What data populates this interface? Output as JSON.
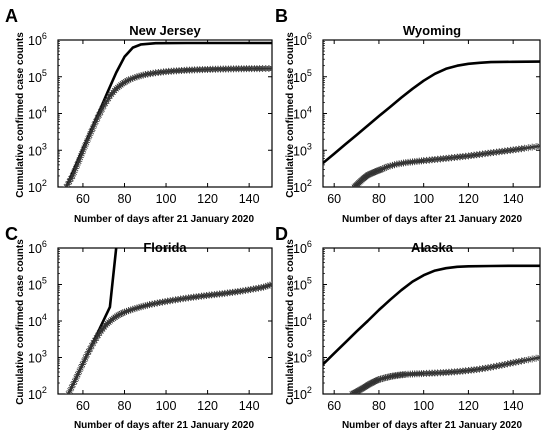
{
  "figure": {
    "line_color": "#000000",
    "marker_color": "#333333",
    "axis_color": "#000000"
  },
  "chart_data": [
    {
      "type": "line",
      "panel_letter": "A",
      "title": "New Jersey",
      "xlabel": "Number of days after 21 January 2020",
      "ylabel": "Cumulative confirmed case counts",
      "yscale": "log",
      "xlim": [
        48,
        151
      ],
      "ylim": [
        100,
        1000000
      ],
      "xticks": [
        60,
        80,
        100,
        120,
        140
      ],
      "yticks": [
        100,
        1000,
        10000,
        100000,
        1000000
      ],
      "ytick_labels": [
        "10^2",
        "10^3",
        "10^4",
        "10^5",
        "10^6"
      ],
      "grid": false,
      "series": [
        {
          "kind": "model",
          "style": "line",
          "x": [
            52,
            56,
            60,
            64,
            68,
            72,
            76,
            80,
            84,
            88,
            95,
            110,
            130,
            151
          ],
          "y": [
            100,
            330,
            1100,
            3600,
            12000,
            40000,
            130000,
            350000,
            620000,
            760000,
            820000,
            830000,
            830000,
            830000
          ]
        },
        {
          "kind": "observed",
          "style": "markers",
          "x": [
            52,
            55,
            58,
            61,
            64,
            67,
            70,
            73,
            76,
            79,
            82,
            86,
            90,
            95,
            100,
            105,
            110,
            115,
            120,
            125,
            130,
            135,
            140,
            145,
            151
          ],
          "y": [
            100,
            200,
            500,
            1300,
            3200,
            7500,
            16000,
            30000,
            47000,
            65000,
            82000,
            100000,
            115000,
            128000,
            138000,
            145000,
            151000,
            155000,
            158000,
            161000,
            163000,
            165000,
            166000,
            167000,
            168000
          ]
        }
      ]
    },
    {
      "type": "line",
      "panel_letter": "B",
      "title": "Wyoming",
      "xlabel": "Number of days after 21 January 2020",
      "ylabel": "Cumulative confirmed case counts",
      "yscale": "log",
      "xlim": [
        55,
        152
      ],
      "ylim": [
        100,
        1000000
      ],
      "xticks": [
        60,
        80,
        100,
        120,
        140
      ],
      "yticks": [
        100,
        1000,
        10000,
        100000,
        1000000
      ],
      "ytick_labels": [
        "10^2",
        "10^3",
        "10^4",
        "10^5",
        "10^6"
      ],
      "grid": false,
      "series": [
        {
          "kind": "model",
          "style": "line",
          "x": [
            55,
            60,
            65,
            70,
            75,
            80,
            85,
            90,
            95,
            100,
            105,
            110,
            115,
            120,
            125,
            130,
            140,
            152
          ],
          "y": [
            450,
            800,
            1450,
            2600,
            4700,
            8500,
            15000,
            27000,
            47000,
            78000,
            120000,
            165000,
            200000,
            225000,
            240000,
            250000,
            255000,
            258000
          ]
        },
        {
          "kind": "observed",
          "style": "markers",
          "x": [
            69,
            71,
            73,
            75,
            77,
            79,
            81,
            84,
            88,
            92,
            96,
            100,
            105,
            110,
            115,
            120,
            125,
            130,
            135,
            140,
            145,
            152
          ],
          "y": [
            100,
            130,
            170,
            210,
            240,
            270,
            300,
            360,
            420,
            460,
            490,
            520,
            560,
            600,
            650,
            700,
            770,
            850,
            930,
            1020,
            1130,
            1300
          ]
        }
      ]
    },
    {
      "type": "line",
      "panel_letter": "C",
      "title": "Florida",
      "xlabel": "Number of days after 21 January 2020",
      "ylabel": "Cumulative confirmed case counts",
      "yscale": "log",
      "xlim": [
        48,
        151
      ],
      "ylim": [
        100,
        1000000
      ],
      "xticks": [
        60,
        80,
        100,
        120,
        140
      ],
      "yticks": [
        100,
        1000,
        10000,
        100000,
        1000000
      ],
      "ytick_labels": [
        "10^2",
        "10^3",
        "10^4",
        "10^5",
        "10^6"
      ],
      "grid": false,
      "series": [
        {
          "kind": "model",
          "style": "line",
          "x": [
            53,
            57,
            61,
            65,
            69,
            73,
            76
          ],
          "y": [
            100,
            300,
            900,
            2700,
            8000,
            24000,
            1000000
          ]
        },
        {
          "kind": "observed",
          "style": "markers",
          "x": [
            53,
            56,
            59,
            62,
            65,
            68,
            71,
            74,
            77,
            80,
            84,
            88,
            92,
            97,
            102,
            107,
            112,
            117,
            122,
            127,
            132,
            137,
            142,
            147,
            151
          ],
          "y": [
            100,
            220,
            520,
            1200,
            2500,
            4700,
            7800,
            11000,
            14500,
            17500,
            21000,
            24500,
            28000,
            32000,
            36000,
            40000,
            44000,
            48000,
            52000,
            56000,
            61000,
            67000,
            75000,
            85000,
            100000
          ]
        }
      ]
    },
    {
      "type": "line",
      "panel_letter": "D",
      "title": "Alaska",
      "xlabel": "Number of days after 21 January 2020",
      "ylabel": "Cumulative confirmed case counts",
      "yscale": "log",
      "xlim": [
        55,
        152
      ],
      "ylim": [
        100,
        1000000
      ],
      "xticks": [
        60,
        80,
        100,
        120,
        140
      ],
      "yticks": [
        100,
        1000,
        10000,
        100000,
        1000000
      ],
      "ytick_labels": [
        "10^2",
        "10^3",
        "10^4",
        "10^5",
        "10^6"
      ],
      "grid": false,
      "series": [
        {
          "kind": "model",
          "style": "line",
          "x": [
            55,
            60,
            65,
            70,
            75,
            80,
            85,
            90,
            95,
            100,
            105,
            110,
            115,
            120,
            130,
            140,
            152
          ],
          "y": [
            650,
            1300,
            2600,
            5200,
            10000,
            20000,
            38000,
            70000,
            120000,
            180000,
            240000,
            280000,
            305000,
            315000,
            322000,
            325000,
            326000
          ]
        },
        {
          "kind": "observed",
          "style": "markers",
          "x": [
            68,
            70,
            72,
            74,
            76,
            78,
            80,
            83,
            86,
            89,
            92,
            96,
            100,
            105,
            110,
            115,
            120,
            125,
            130,
            135,
            140,
            145,
            152
          ],
          "y": [
            100,
            115,
            135,
            160,
            190,
            220,
            250,
            280,
            310,
            330,
            345,
            355,
            365,
            375,
            390,
            410,
            440,
            480,
            540,
            620,
            720,
            830,
            1000
          ]
        }
      ]
    }
  ]
}
